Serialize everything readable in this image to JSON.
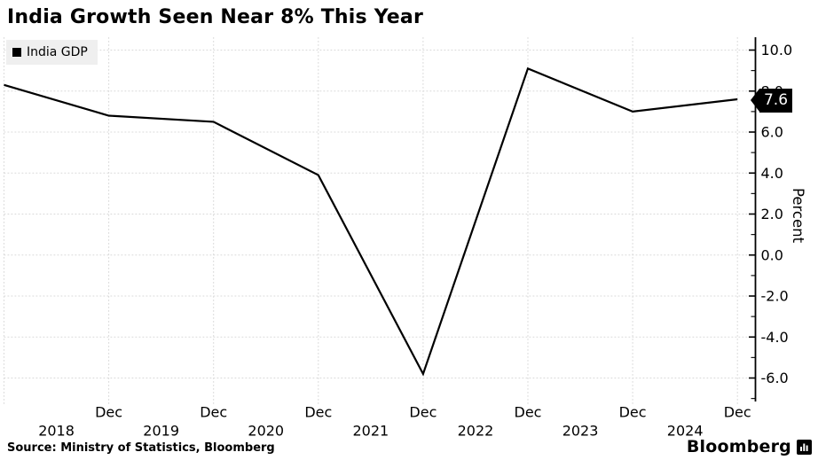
{
  "window": {
    "background": "#ffffff"
  },
  "title": "India Growth Seen Near 8% This Year",
  "legend": {
    "label": "India GDP",
    "marker_color": "#000000",
    "background": "#efefef"
  },
  "y_axis": {
    "label": "Percent",
    "side": "right",
    "tick_labels": [
      "10.0",
      "8.0",
      "6.0",
      "4.0",
      "2.0",
      "0.0",
      "-2.0",
      "-4.0",
      "-6.0"
    ]
  },
  "x_axis": {
    "month_tick_label": "Dec",
    "year_labels": [
      "2018",
      "2019",
      "2020",
      "2021",
      "2022",
      "2023",
      "2024"
    ]
  },
  "annotation": {
    "last_value_label": "7.6",
    "background": "#000000",
    "text_color": "#ffffff"
  },
  "source": "Source: Ministry of Statistics, Bloomberg",
  "branding": {
    "wordmark": "Bloomberg",
    "icon": "bar-chart-bubble-icon"
  },
  "colors": {
    "line": "#000000",
    "grid": "#d8d8d8",
    "axis": "#000000",
    "text": "#000000"
  },
  "chart_data": {
    "type": "line",
    "title": "India Growth Seen Near 8% This Year",
    "ylabel": "Percent",
    "ylim": [
      -7.2,
      10.6
    ],
    "y_major_ticks": [
      10,
      8,
      6,
      4,
      2,
      0,
      -2,
      -4,
      -6
    ],
    "y_minor_tick_step": 1,
    "grid": "dotted",
    "legend_position": "top-left",
    "x": [
      "Dec 2017",
      "Dec 2018",
      "Dec 2019",
      "Dec 2020",
      "Dec 2021",
      "Dec 2022",
      "Dec 2023",
      "Dec 2024"
    ],
    "x_tick_labels": [
      "",
      "Dec",
      "Dec",
      "Dec",
      "Dec",
      "Dec",
      "Dec",
      "Dec"
    ],
    "x_year_labels": [
      "2018",
      "2019",
      "2020",
      "2021",
      "2022",
      "2023",
      "2024"
    ],
    "series": [
      {
        "name": "India GDP",
        "color": "#000000",
        "values": [
          8.3,
          6.8,
          6.5,
          3.9,
          -5.8,
          9.1,
          7.0,
          7.6
        ]
      }
    ],
    "last_point_label": "7.6"
  }
}
